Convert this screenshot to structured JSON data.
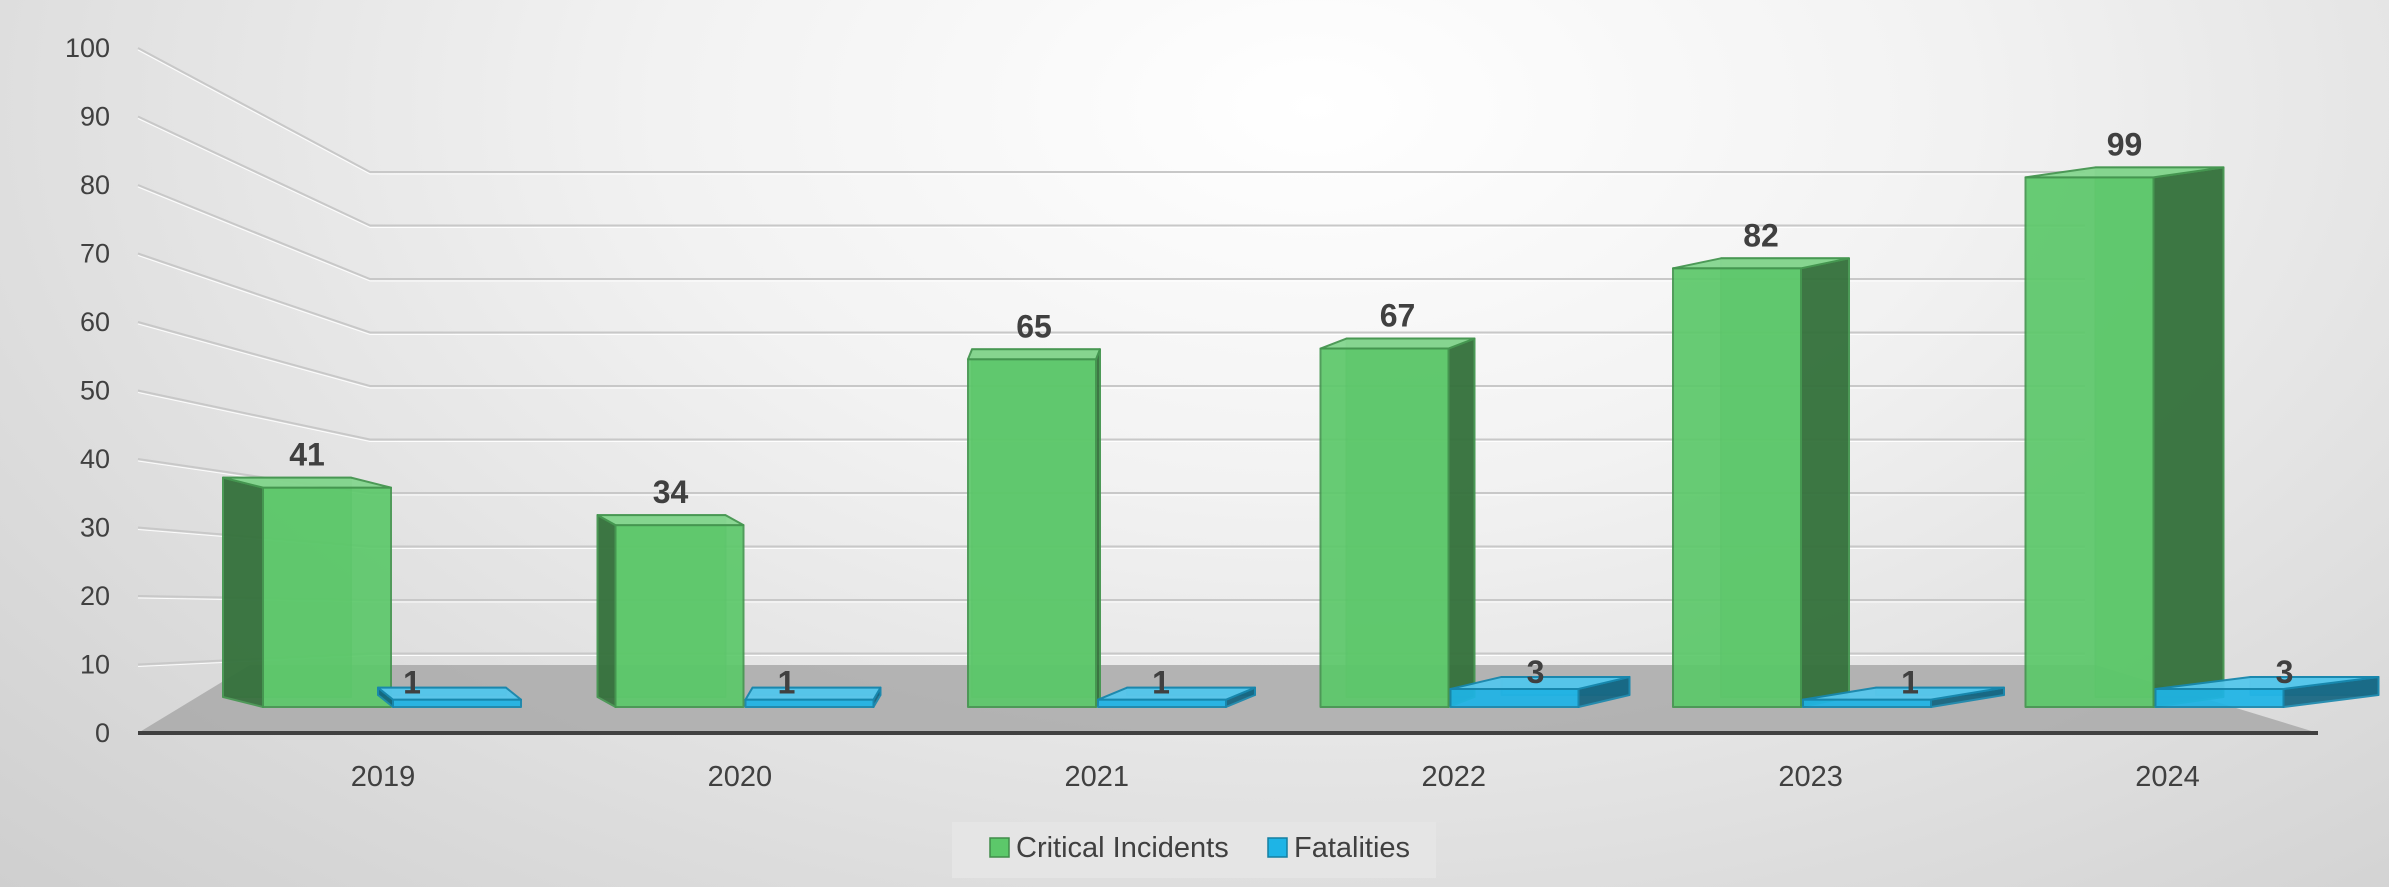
{
  "chart_data": {
    "type": "bar",
    "title": "",
    "xlabel": "",
    "ylabel": "",
    "categories": [
      "2019",
      "2020",
      "2021",
      "2022",
      "2023",
      "2024"
    ],
    "series": [
      {
        "name": "Critical Incidents",
        "values": [
          41,
          34,
          65,
          67,
          82,
          99
        ],
        "color": "#5cc86a"
      },
      {
        "name": "Fatalities",
        "values": [
          1,
          1,
          1,
          3,
          1,
          3
        ],
        "color": "#1eb4e6"
      }
    ],
    "ylim": [
      0,
      100
    ],
    "yticks": [
      "0",
      "10",
      "20",
      "30",
      "40",
      "50",
      "60",
      "70",
      "80",
      "90",
      "100"
    ],
    "grid": true,
    "legend_position": "bottom",
    "style": "3d-clustered-column"
  }
}
